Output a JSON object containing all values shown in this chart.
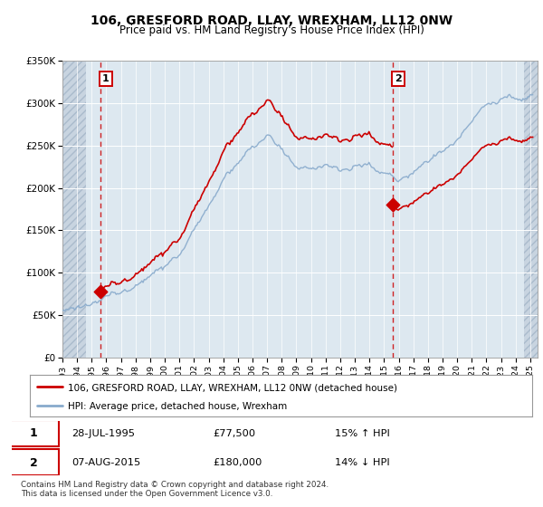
{
  "title": "106, GRESFORD ROAD, LLAY, WREXHAM, LL12 0NW",
  "subtitle": "Price paid vs. HM Land Registry's House Price Index (HPI)",
  "sale1_date": 1995.58,
  "sale1_price": 77500,
  "sale2_date": 2015.59,
  "sale2_price": 180000,
  "ylim": [
    0,
    350000
  ],
  "xlim": [
    1993.0,
    2025.5
  ],
  "hatch_left_end": 1994.58,
  "hatch_right_start": 2024.58,
  "legend_line1": "106, GRESFORD ROAD, LLAY, WREXHAM, LL12 0NW (detached house)",
  "legend_line2": "HPI: Average price, detached house, Wrexham",
  "sale1_label": "1",
  "sale2_label": "2",
  "footnote1": "Contains HM Land Registry data © Crown copyright and database right 2024.",
  "footnote2": "This data is licensed under the Open Government Licence v3.0.",
  "table_row1": [
    "1",
    "28-JUL-1995",
    "£77,500",
    "15% ↑ HPI"
  ],
  "table_row2": [
    "2",
    "07-AUG-2015",
    "£180,000",
    "14% ↓ HPI"
  ],
  "red_color": "#cc0000",
  "blue_color": "#88aacc",
  "bg_chart": "#dde8f0",
  "bg_hatch": "#c8d4e0",
  "grid_color": "#ffffff",
  "ytick_labels": [
    "£0",
    "£50K",
    "£100K",
    "£150K",
    "£200K",
    "£250K",
    "£300K",
    "£350K"
  ],
  "ytick_values": [
    0,
    50000,
    100000,
    150000,
    200000,
    250000,
    300000,
    350000
  ]
}
